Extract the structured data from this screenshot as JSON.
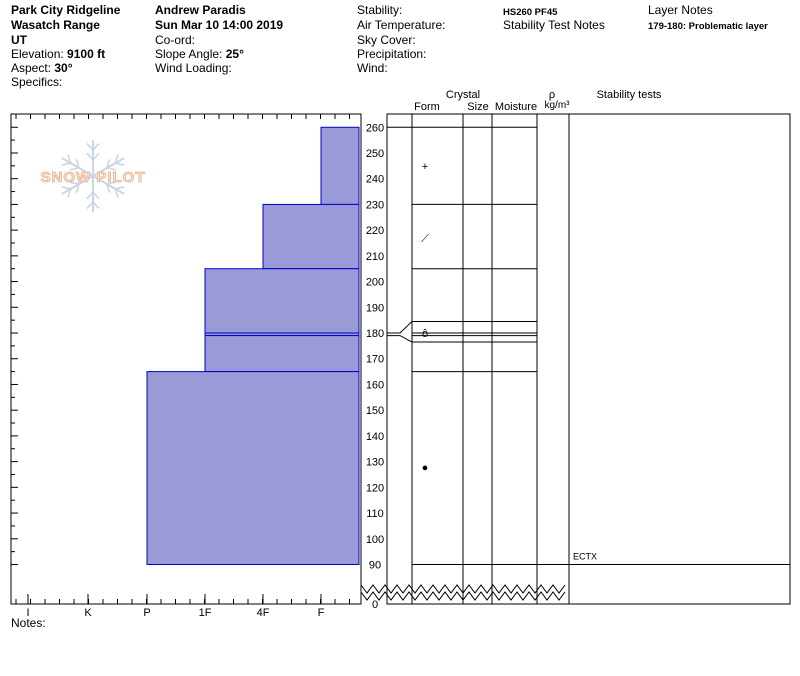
{
  "header": {
    "location": "Park City Ridgeline",
    "range": "Wasatch Range",
    "state": "UT",
    "elevation_label": "Elevation:",
    "elevation_value": "9100 ft",
    "aspect_label": "Aspect:",
    "aspect_value": "30°",
    "specifics_label": "Specifics:",
    "observer": "Andrew Paradis",
    "datetime": "Sun Mar 10 14:00 2019",
    "coord_label": "Co-ord:",
    "slope_label": "Slope Angle:",
    "slope_value": "25°",
    "wind_loading_label": "Wind Loading:",
    "stability_label": "Stability:",
    "air_temp_label": "Air Temperature:",
    "sky_cover_label": "Sky Cover:",
    "precip_label": "Precipitation:",
    "wind_label": "Wind:",
    "hs_pf": "HS260  PF45",
    "stability_notes_label": "Stability Test Notes",
    "layer_notes_label": "Layer Notes",
    "layer_note_1": "179-180: Problematic layer"
  },
  "columns": {
    "crystal": "Crystal",
    "form": "Form",
    "size": "Size",
    "moisture": "Moisture",
    "rho": "ρ",
    "density_unit": "kg/m³",
    "stability_tests": "Stability tests"
  },
  "notes_label": "Notes:",
  "watermark": "SNOW PILOT",
  "colors": {
    "hardness_fill": "#9a9ad6",
    "hardness_edge": "#0000cc"
  },
  "chart_data": {
    "type": "bar",
    "title": "",
    "hardness_ticks": [
      "I",
      "K",
      "P",
      "1F",
      "4F",
      "F"
    ],
    "ylim": [
      0,
      260
    ],
    "y_axis_ticks": [
      0,
      90,
      100,
      110,
      120,
      130,
      140,
      150,
      160,
      170,
      180,
      190,
      200,
      210,
      220,
      230,
      240,
      250,
      260
    ],
    "axis_break": [
      0,
      90
    ],
    "layers": [
      {
        "top": 260,
        "bottom": 230,
        "hardness": "F"
      },
      {
        "top": 230,
        "bottom": 205,
        "hardness": "4F"
      },
      {
        "top": 205,
        "bottom": 180,
        "hardness": "1F"
      },
      {
        "top": 180,
        "bottom": 179,
        "hardness": "1F"
      },
      {
        "top": 179,
        "bottom": 165,
        "hardness": "1F"
      },
      {
        "top": 165,
        "bottom": 90,
        "hardness": "P"
      }
    ],
    "layer_boundaries": [
      230,
      205,
      180,
      179,
      165,
      90
    ],
    "grain_symbols": [
      {
        "height": 245,
        "symbol": "+"
      },
      {
        "height": 217,
        "symbol": "⟋"
      },
      {
        "height": 180,
        "symbol": "ô"
      },
      {
        "height": 128,
        "symbol": "●"
      }
    ],
    "stability_tests": [
      {
        "height": 90,
        "label": "ECTX"
      }
    ]
  }
}
